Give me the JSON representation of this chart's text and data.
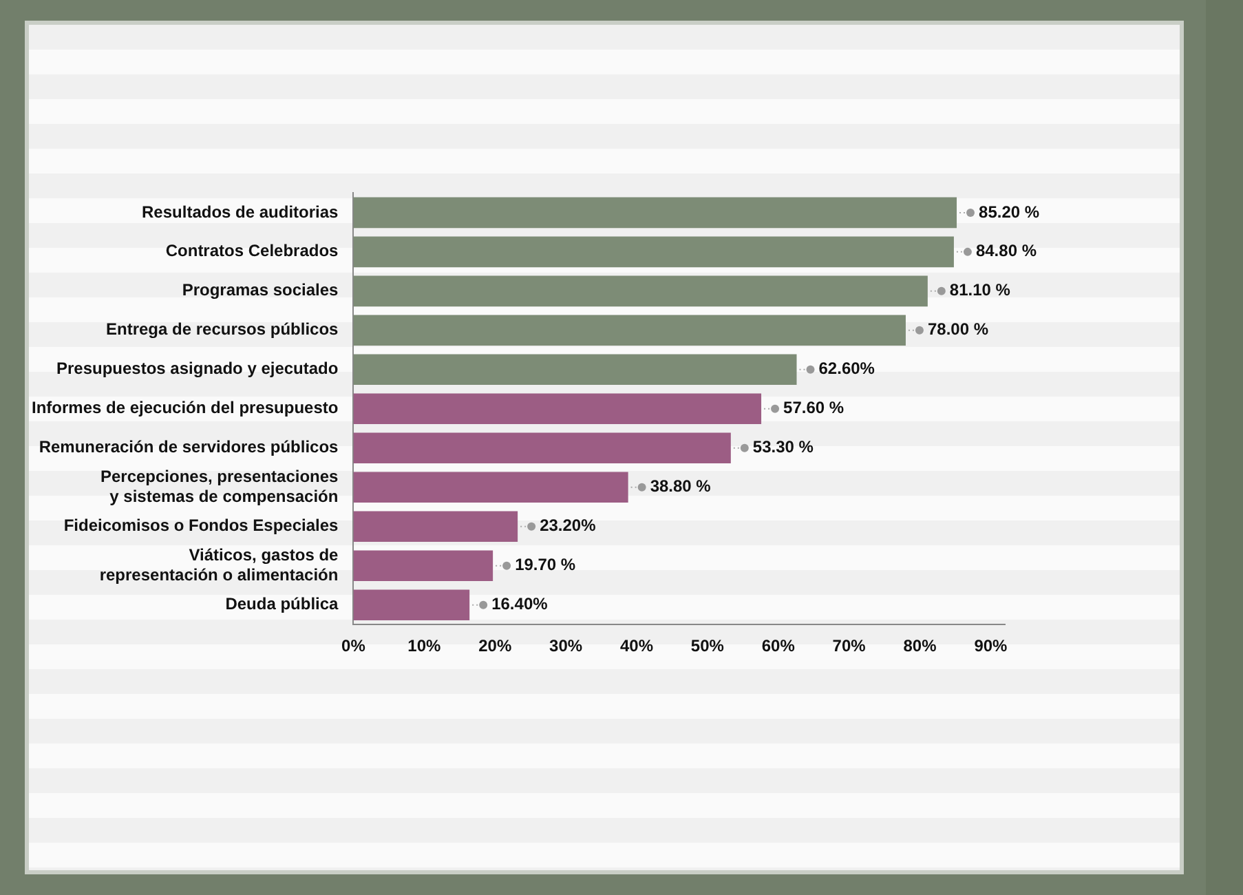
{
  "chart_data": {
    "type": "bar",
    "orientation": "horizontal",
    "categories": [
      "Resultados de auditorias",
      "Contratos Celebrados",
      "Programas sociales",
      "Entrega de recursos públicos",
      "Presupuestos asignado y ejecutado",
      "Informes de ejecución del presupuesto",
      "Remuneración de servidores públicos",
      "Percepciones, presentaciones y sistemas de compensación",
      "Fideicomisos o Fondos Especiales",
      "Viáticos, gastos de representación o alimentación",
      "Deuda pública"
    ],
    "values": [
      85.2,
      84.8,
      81.1,
      78.0,
      62.6,
      57.6,
      53.3,
      38.8,
      23.2,
      19.7,
      16.4
    ],
    "value_labels": [
      "85.20 %",
      "84.80 %",
      "81.10 %",
      "78.00 %",
      "62.60%",
      "57.60 %",
      "53.30 %",
      "38.80 %",
      "23.20%",
      "19.70 %",
      "16.40%"
    ],
    "colors": [
      "#7d8c76",
      "#7d8c76",
      "#7d8c76",
      "#7d8c76",
      "#7d8c76",
      "#9c5d84",
      "#9c5d84",
      "#9c5d84",
      "#9c5d84",
      "#9c5d84",
      "#9c5d84"
    ],
    "xlim": [
      0,
      92
    ],
    "xticks": [
      {
        "value": 0,
        "label": "0%"
      },
      {
        "value": 10,
        "label": "10%"
      },
      {
        "value": 20,
        "label": "20%"
      },
      {
        "value": 30,
        "label": "30%"
      },
      {
        "value": 40,
        "label": "40%"
      },
      {
        "value": 50,
        "label": "50%"
      },
      {
        "value": 60,
        "label": "60%"
      },
      {
        "value": 70,
        "label": "70%"
      },
      {
        "value": 80,
        "label": "80%"
      },
      {
        "value": 90,
        "label": "90%"
      }
    ],
    "grid": false,
    "legend": false
  }
}
